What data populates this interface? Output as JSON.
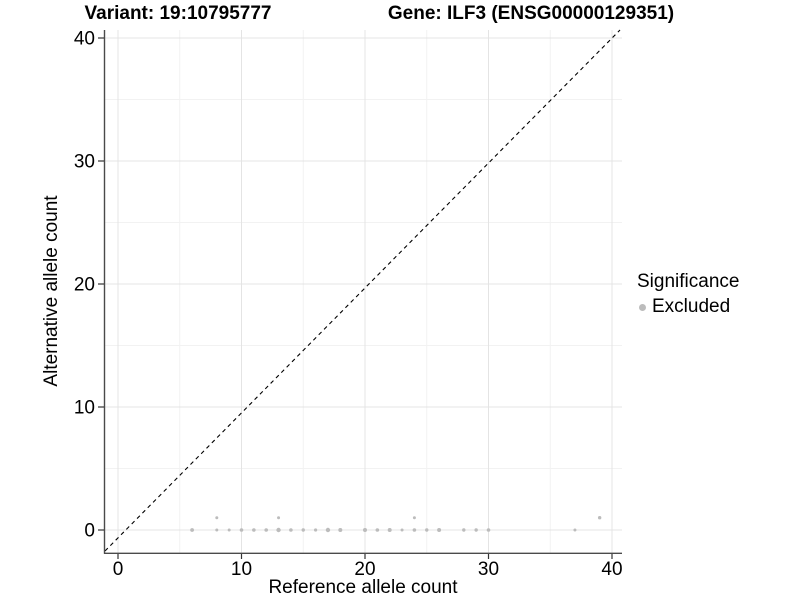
{
  "chart_data": {
    "type": "scatter",
    "title_left": "Variant: 19:10795777",
    "title_right": "Gene: ILF3 (ENSG00000129351)",
    "xlabel": "Reference allele count",
    "ylabel": "Alternative allele count",
    "xlim": [
      -1.1,
      40.8
    ],
    "ylim": [
      -1.9,
      40.7
    ],
    "x_ticks": [
      0,
      10,
      20,
      30,
      40
    ],
    "y_ticks": [
      0,
      10,
      20,
      30,
      40
    ],
    "x_minor_gridlines": [
      5,
      15,
      25,
      35
    ],
    "y_minor_gridlines": [
      5,
      15,
      25,
      35
    ],
    "grid": true,
    "legend": {
      "position": "right",
      "title": "Significance",
      "items": [
        {
          "label": "Excluded",
          "color": "#bcbcbc"
        }
      ]
    },
    "reference_line": {
      "type": "identity",
      "slope": 1,
      "intercept": 0,
      "style": "dashed",
      "color": "#000000"
    },
    "series": [
      {
        "name": "Excluded",
        "color": "#bcbcbc",
        "points": [
          {
            "x": 6,
            "y": 0,
            "r": 1.9
          },
          {
            "x": 8,
            "y": 0,
            "r": 1.5
          },
          {
            "x": 9,
            "y": 0,
            "r": 1.5
          },
          {
            "x": 10,
            "y": 0,
            "r": 1.8
          },
          {
            "x": 11,
            "y": 0,
            "r": 1.8
          },
          {
            "x": 12,
            "y": 0,
            "r": 1.8
          },
          {
            "x": 13,
            "y": 0,
            "r": 2.2
          },
          {
            "x": 14,
            "y": 0,
            "r": 1.8
          },
          {
            "x": 15,
            "y": 0,
            "r": 1.7
          },
          {
            "x": 16,
            "y": 0,
            "r": 1.6
          },
          {
            "x": 17,
            "y": 0,
            "r": 2.2
          },
          {
            "x": 18,
            "y": 0,
            "r": 2.0
          },
          {
            "x": 20,
            "y": 0,
            "r": 2.0
          },
          {
            "x": 21,
            "y": 0,
            "r": 1.8
          },
          {
            "x": 22,
            "y": 0,
            "r": 2.0
          },
          {
            "x": 23,
            "y": 0,
            "r": 1.5
          },
          {
            "x": 24,
            "y": 0,
            "r": 1.8
          },
          {
            "x": 25,
            "y": 0,
            "r": 1.7
          },
          {
            "x": 26,
            "y": 0,
            "r": 2.0
          },
          {
            "x": 28,
            "y": 0,
            "r": 1.7
          },
          {
            "x": 29,
            "y": 0,
            "r": 1.7
          },
          {
            "x": 30,
            "y": 0,
            "r": 1.8
          },
          {
            "x": 37,
            "y": 0,
            "r": 1.5
          },
          {
            "x": 8,
            "y": 1,
            "r": 1.5
          },
          {
            "x": 13,
            "y": 1,
            "r": 1.5
          },
          {
            "x": 24,
            "y": 1,
            "r": 1.5
          },
          {
            "x": 39,
            "y": 1,
            "r": 1.7
          }
        ]
      }
    ],
    "colors": {
      "point": "#bcbcbc",
      "grid_major": "#e4e4e4",
      "grid_minor": "#f2f2f2",
      "axis_line": "#4a4a4a",
      "tick_mark": "#333333",
      "tick_label": "#000000",
      "dashed_line": "#000000",
      "background": "#ffffff"
    }
  }
}
